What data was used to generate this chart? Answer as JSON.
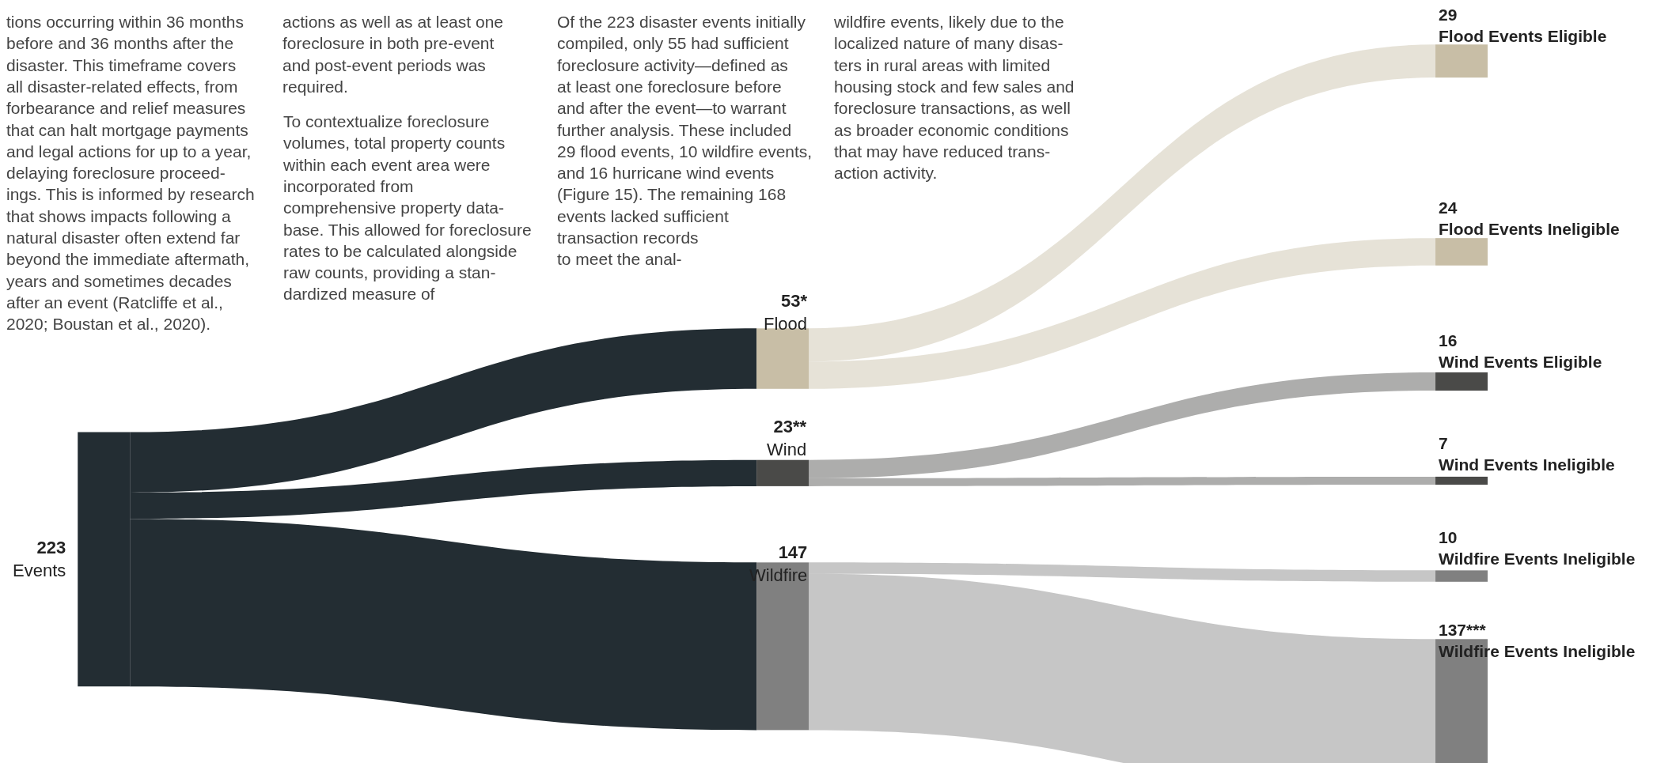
{
  "chart_data": {
    "type": "other",
    "categories": [
      "Events",
      "Flood",
      "Wind",
      "Wildfire",
      "Flood Events Eligible",
      "Flood Events Ineligible",
      "Wind Events Eligible",
      "Wind Events Ineligible",
      "Wildfire Events Ineligible",
      "Wildfire Events Ineligible"
    ],
    "series": [
      {
        "values": [
          223,
          null,
          null,
          null,
          null,
          null,
          null,
          null,
          null,
          null
        ],
        "value_labels": [
          "223",
          null,
          null,
          null,
          null,
          null,
          null,
          null,
          null,
          null
        ],
        "colors": [
          "#232d33",
          null,
          null,
          null,
          null,
          null,
          null,
          null,
          null,
          null
        ]
      },
      {
        "values": [
          null,
          53,
          23,
          147,
          null,
          null,
          null,
          null,
          null,
          null
        ],
        "value_labels": [
          null,
          "53*",
          "23**",
          "147",
          null,
          null,
          null,
          null,
          null,
          null
        ],
        "colors": [
          null,
          "#c8bea6",
          "#4a4a48",
          "#808080",
          null,
          null,
          null,
          null,
          null,
          null
        ]
      },
      {
        "values": [
          null,
          null,
          null,
          null,
          29,
          24,
          16,
          7,
          10,
          137
        ],
        "value_labels": [
          null,
          null,
          null,
          null,
          "29",
          "24",
          "16",
          "7",
          "10",
          "137***"
        ],
        "colors": [
          null,
          null,
          null,
          null,
          "#c8bea6",
          "#c8bea6",
          "#4a4a48",
          "#4a4a48",
          "#808080",
          "#808080"
        ]
      }
    ],
    "annotations": [
      "tions occurring within 36 months\nbefore and 36 months after the\ndisaster. This timeframe covers\nall disaster-related effects, from\nforbearance and relief measures\nthat can halt mortgage payments\nand legal actions for up to a year,\ndelaying foreclosure proceed-\nings. This is informed by research\nthat shows impacts following a\nnatural disaster often extend far\nbeyond the immediate aftermath,\nyears and sometimes decades\nafter an event (Ratcliffe et al.,\n2020; Boustan et al., 2020).",
      "actions as well as at least one\nforeclosure in both pre-event\nand post-event periods was\nrequired.",
      "To contextualize foreclosure\nvolumes, total property counts\nwithin each event area were\nincorporated from\ncomprehensive property data-\nbase. This allowed for foreclosure\nrates to be calculated alongside\nraw counts, providing a stan-\ndardized measure of",
      "Of the 223 disaster events initially\ncompiled, only 55 had sufficient\nforeclosure activity—defined as\nat least one foreclosure before\nand after the event—to warrant\nfurther analysis. These included\n29 flood events, 10 wildfire events,\nand 16 hurricane wind events\n(Figure 15). The remaining 168\nevents lacked sufficient\ntransaction records\nto meet the anal-",
      "wildfire events, likely due to the\nlocalized nature of many disas-\nters in rural areas with limited\nhousing stock and few sales and\nforeclosure transactions, as well\nas broader economic conditions\nthat may have reduced trans-\naction activity."
    ]
  }
}
